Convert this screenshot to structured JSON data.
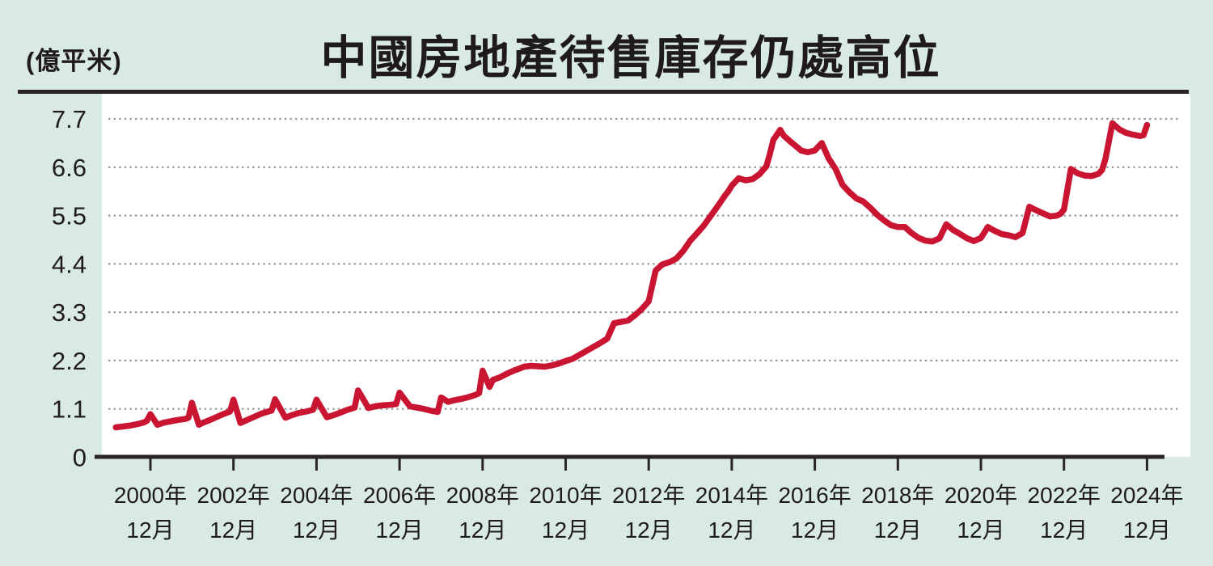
{
  "page": {
    "background_color": "#d9e9e6"
  },
  "chart": {
    "title": "中國房地產待售庫存仍處高位",
    "unit_label": "(億平米)"
  },
  "chart_data": {
    "type": "line",
    "title": "中國房地產待售庫存仍處高位",
    "ylabel": "(億平米)",
    "xlabel": "",
    "ylim": [
      0,
      7.7
    ],
    "y_ticks": [
      0,
      1.1,
      2.2,
      3.3,
      4.4,
      5.5,
      6.6,
      7.7
    ],
    "x_tick_labels_line1": [
      "2000年",
      "2002年",
      "2004年",
      "2006年",
      "2008年",
      "2010年",
      "2012年",
      "2014年",
      "2016年",
      "2018年",
      "2020年",
      "2022年",
      "2024年"
    ],
    "x_tick_label_line2": "12月",
    "grid": "dotted-horizontal",
    "legend_position": "none",
    "colors": {
      "line": "#c91532",
      "plot_background": "#ffffff",
      "page_background": "#d9e9e6",
      "axis": "#2a2425",
      "gridline": "#979797",
      "text": "#201b1b"
    },
    "series": [
      {
        "name": "待售庫存",
        "color": "#c91532",
        "points_format": [
          "year",
          "month",
          "value_yi_sqm"
        ],
        "points": [
          [
            2000,
            2,
            0.68
          ],
          [
            2000,
            4,
            0.7
          ],
          [
            2000,
            6,
            0.72
          ],
          [
            2000,
            8,
            0.75
          ],
          [
            2000,
            10,
            0.79
          ],
          [
            2000,
            11,
            0.83
          ],
          [
            2000,
            12,
            0.98
          ],
          [
            2001,
            2,
            0.74
          ],
          [
            2001,
            4,
            0.79
          ],
          [
            2001,
            6,
            0.82
          ],
          [
            2001,
            8,
            0.85
          ],
          [
            2001,
            10,
            0.87
          ],
          [
            2001,
            11,
            0.9
          ],
          [
            2001,
            12,
            1.24
          ],
          [
            2002,
            2,
            0.74
          ],
          [
            2002,
            3,
            0.78
          ],
          [
            2002,
            5,
            0.84
          ],
          [
            2002,
            7,
            0.91
          ],
          [
            2002,
            9,
            0.98
          ],
          [
            2002,
            11,
            1.04
          ],
          [
            2002,
            12,
            1.31
          ],
          [
            2003,
            2,
            0.78
          ],
          [
            2003,
            4,
            0.85
          ],
          [
            2003,
            6,
            0.92
          ],
          [
            2003,
            8,
            0.99
          ],
          [
            2003,
            10,
            1.04
          ],
          [
            2003,
            11,
            1.06
          ],
          [
            2003,
            12,
            1.32
          ],
          [
            2004,
            3,
            0.9
          ],
          [
            2004,
            5,
            0.96
          ],
          [
            2004,
            7,
            1.01
          ],
          [
            2004,
            9,
            1.04
          ],
          [
            2004,
            11,
            1.08
          ],
          [
            2004,
            12,
            1.31
          ],
          [
            2005,
            3,
            0.91
          ],
          [
            2005,
            5,
            0.96
          ],
          [
            2005,
            7,
            1.02
          ],
          [
            2005,
            9,
            1.08
          ],
          [
            2005,
            11,
            1.13
          ],
          [
            2005,
            12,
            1.52
          ],
          [
            2006,
            3,
            1.12
          ],
          [
            2006,
            5,
            1.16
          ],
          [
            2006,
            7,
            1.18
          ],
          [
            2006,
            9,
            1.19
          ],
          [
            2006,
            11,
            1.21
          ],
          [
            2006,
            12,
            1.47
          ],
          [
            2007,
            3,
            1.16
          ],
          [
            2007,
            5,
            1.13
          ],
          [
            2007,
            7,
            1.1
          ],
          [
            2007,
            9,
            1.06
          ],
          [
            2007,
            11,
            1.03
          ],
          [
            2007,
            12,
            1.36
          ],
          [
            2008,
            2,
            1.26
          ],
          [
            2008,
            4,
            1.3
          ],
          [
            2008,
            6,
            1.33
          ],
          [
            2008,
            8,
            1.37
          ],
          [
            2008,
            10,
            1.42
          ],
          [
            2008,
            11,
            1.46
          ],
          [
            2008,
            12,
            1.97
          ],
          [
            2009,
            2,
            1.6
          ],
          [
            2009,
            3,
            1.76
          ],
          [
            2009,
            5,
            1.82
          ],
          [
            2009,
            7,
            1.9
          ],
          [
            2009,
            9,
            1.97
          ],
          [
            2009,
            11,
            2.03
          ],
          [
            2009,
            12,
            2.06
          ],
          [
            2010,
            2,
            2.08
          ],
          [
            2010,
            4,
            2.07
          ],
          [
            2010,
            6,
            2.06
          ],
          [
            2010,
            8,
            2.09
          ],
          [
            2010,
            10,
            2.13
          ],
          [
            2010,
            12,
            2.19
          ],
          [
            2011,
            2,
            2.24
          ],
          [
            2011,
            4,
            2.33
          ],
          [
            2011,
            6,
            2.42
          ],
          [
            2011,
            8,
            2.51
          ],
          [
            2011,
            10,
            2.6
          ],
          [
            2011,
            12,
            2.7
          ],
          [
            2012,
            2,
            3.05
          ],
          [
            2012,
            4,
            3.08
          ],
          [
            2012,
            6,
            3.11
          ],
          [
            2012,
            8,
            3.23
          ],
          [
            2012,
            10,
            3.37
          ],
          [
            2012,
            12,
            3.55
          ],
          [
            2013,
            2,
            4.25
          ],
          [
            2013,
            4,
            4.39
          ],
          [
            2013,
            6,
            4.44
          ],
          [
            2013,
            8,
            4.52
          ],
          [
            2013,
            10,
            4.7
          ],
          [
            2013,
            12,
            4.93
          ],
          [
            2014,
            2,
            5.1
          ],
          [
            2014,
            4,
            5.28
          ],
          [
            2014,
            6,
            5.5
          ],
          [
            2014,
            8,
            5.72
          ],
          [
            2014,
            10,
            5.95
          ],
          [
            2014,
            11,
            6.05
          ],
          [
            2014,
            12,
            6.18
          ],
          [
            2015,
            2,
            6.35
          ],
          [
            2015,
            4,
            6.3
          ],
          [
            2015,
            6,
            6.33
          ],
          [
            2015,
            8,
            6.44
          ],
          [
            2015,
            10,
            6.62
          ],
          [
            2015,
            11,
            6.9
          ],
          [
            2015,
            12,
            7.22
          ],
          [
            2016,
            2,
            7.45
          ],
          [
            2016,
            3,
            7.32
          ],
          [
            2016,
            5,
            7.18
          ],
          [
            2016,
            7,
            7.05
          ],
          [
            2016,
            8,
            6.98
          ],
          [
            2016,
            10,
            6.94
          ],
          [
            2016,
            12,
            6.98
          ],
          [
            2017,
            2,
            7.15
          ],
          [
            2017,
            4,
            6.8
          ],
          [
            2017,
            6,
            6.56
          ],
          [
            2017,
            8,
            6.2
          ],
          [
            2017,
            10,
            6.03
          ],
          [
            2017,
            11,
            5.96
          ],
          [
            2017,
            12,
            5.89
          ],
          [
            2018,
            2,
            5.82
          ],
          [
            2018,
            4,
            5.68
          ],
          [
            2018,
            6,
            5.52
          ],
          [
            2018,
            8,
            5.39
          ],
          [
            2018,
            10,
            5.28
          ],
          [
            2018,
            12,
            5.24
          ],
          [
            2019,
            2,
            5.24
          ],
          [
            2019,
            4,
            5.1
          ],
          [
            2019,
            6,
            4.99
          ],
          [
            2019,
            8,
            4.93
          ],
          [
            2019,
            10,
            4.91
          ],
          [
            2019,
            12,
            4.98
          ],
          [
            2020,
            2,
            5.3
          ],
          [
            2020,
            4,
            5.17
          ],
          [
            2020,
            6,
            5.08
          ],
          [
            2020,
            8,
            4.98
          ],
          [
            2020,
            10,
            4.92
          ],
          [
            2020,
            12,
            4.99
          ],
          [
            2021,
            2,
            5.24
          ],
          [
            2021,
            4,
            5.15
          ],
          [
            2021,
            6,
            5.08
          ],
          [
            2021,
            8,
            5.05
          ],
          [
            2021,
            10,
            5.01
          ],
          [
            2021,
            12,
            5.1
          ],
          [
            2022,
            2,
            5.7
          ],
          [
            2022,
            4,
            5.62
          ],
          [
            2022,
            6,
            5.55
          ],
          [
            2022,
            8,
            5.48
          ],
          [
            2022,
            10,
            5.5
          ],
          [
            2022,
            11,
            5.54
          ],
          [
            2022,
            12,
            5.64
          ],
          [
            2023,
            2,
            6.56
          ],
          [
            2023,
            4,
            6.46
          ],
          [
            2023,
            6,
            6.41
          ],
          [
            2023,
            8,
            6.4
          ],
          [
            2023,
            10,
            6.45
          ],
          [
            2023,
            11,
            6.54
          ],
          [
            2023,
            12,
            6.79
          ],
          [
            2024,
            2,
            7.6
          ],
          [
            2024,
            4,
            7.46
          ],
          [
            2024,
            6,
            7.38
          ],
          [
            2024,
            8,
            7.34
          ],
          [
            2024,
            10,
            7.31
          ],
          [
            2024,
            11,
            7.33
          ],
          [
            2024,
            12,
            7.56
          ]
        ]
      }
    ]
  }
}
